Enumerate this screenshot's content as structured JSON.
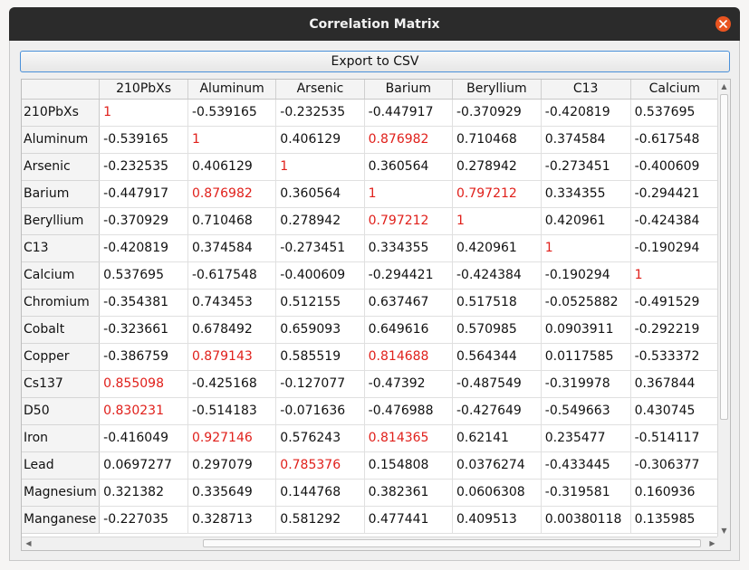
{
  "window": {
    "title": "Correlation Matrix"
  },
  "toolbar": {
    "export_label": "Export to CSV"
  },
  "highlight_color": "#e0201b",
  "icons": {
    "close": "close-icon",
    "scroll_up": "arrow-up-icon",
    "scroll_down": "arrow-down-icon",
    "scroll_left": "arrow-left-icon",
    "scroll_right": "arrow-right-icon"
  },
  "arrows": {
    "up": "▲",
    "down": "▼",
    "left": "◀",
    "right": "▶"
  },
  "table": {
    "columns": [
      "210PbXs",
      "Aluminum",
      "Arsenic",
      "Barium",
      "Beryllium",
      "C13",
      "Calcium"
    ],
    "rows": [
      {
        "label": "210PbXs",
        "cells": [
          {
            "v": "1",
            "hi": true
          },
          {
            "v": "-0.539165"
          },
          {
            "v": "-0.232535"
          },
          {
            "v": "-0.447917"
          },
          {
            "v": "-0.370929"
          },
          {
            "v": "-0.420819"
          },
          {
            "v": "0.537695"
          }
        ]
      },
      {
        "label": "Aluminum",
        "cells": [
          {
            "v": "-0.539165"
          },
          {
            "v": "1",
            "hi": true
          },
          {
            "v": "0.406129"
          },
          {
            "v": "0.876982",
            "hi": true
          },
          {
            "v": "0.710468"
          },
          {
            "v": "0.374584"
          },
          {
            "v": "-0.617548"
          }
        ]
      },
      {
        "label": "Arsenic",
        "cells": [
          {
            "v": "-0.232535"
          },
          {
            "v": "0.406129"
          },
          {
            "v": "1",
            "hi": true
          },
          {
            "v": "0.360564"
          },
          {
            "v": "0.278942"
          },
          {
            "v": "-0.273451"
          },
          {
            "v": "-0.400609"
          }
        ]
      },
      {
        "label": "Barium",
        "cells": [
          {
            "v": "-0.447917"
          },
          {
            "v": "0.876982",
            "hi": true
          },
          {
            "v": "0.360564"
          },
          {
            "v": "1",
            "hi": true
          },
          {
            "v": "0.797212",
            "hi": true
          },
          {
            "v": "0.334355"
          },
          {
            "v": "-0.294421"
          }
        ]
      },
      {
        "label": "Beryllium",
        "cells": [
          {
            "v": "-0.370929"
          },
          {
            "v": "0.710468"
          },
          {
            "v": "0.278942"
          },
          {
            "v": "0.797212",
            "hi": true
          },
          {
            "v": "1",
            "hi": true
          },
          {
            "v": "0.420961"
          },
          {
            "v": "-0.424384"
          }
        ]
      },
      {
        "label": "C13",
        "cells": [
          {
            "v": "-0.420819"
          },
          {
            "v": "0.374584"
          },
          {
            "v": "-0.273451"
          },
          {
            "v": "0.334355"
          },
          {
            "v": "0.420961"
          },
          {
            "v": "1",
            "hi": true
          },
          {
            "v": "-0.190294"
          }
        ]
      },
      {
        "label": "Calcium",
        "cells": [
          {
            "v": "0.537695"
          },
          {
            "v": "-0.617548"
          },
          {
            "v": "-0.400609"
          },
          {
            "v": "-0.294421"
          },
          {
            "v": "-0.424384"
          },
          {
            "v": "-0.190294"
          },
          {
            "v": "1",
            "hi": true
          }
        ]
      },
      {
        "label": "Chromium",
        "cells": [
          {
            "v": "-0.354381"
          },
          {
            "v": "0.743453"
          },
          {
            "v": "0.512155"
          },
          {
            "v": "0.637467"
          },
          {
            "v": "0.517518"
          },
          {
            "v": "-0.0525882"
          },
          {
            "v": "-0.491529"
          }
        ]
      },
      {
        "label": "Cobalt",
        "cells": [
          {
            "v": "-0.323661"
          },
          {
            "v": "0.678492"
          },
          {
            "v": "0.659093"
          },
          {
            "v": "0.649616"
          },
          {
            "v": "0.570985"
          },
          {
            "v": "0.0903911"
          },
          {
            "v": "-0.292219"
          }
        ]
      },
      {
        "label": "Copper",
        "cells": [
          {
            "v": "-0.386759"
          },
          {
            "v": "0.879143",
            "hi": true
          },
          {
            "v": "0.585519"
          },
          {
            "v": "0.814688",
            "hi": true
          },
          {
            "v": "0.564344"
          },
          {
            "v": "0.0117585"
          },
          {
            "v": "-0.533372"
          }
        ]
      },
      {
        "label": "Cs137",
        "cells": [
          {
            "v": "0.855098",
            "hi": true
          },
          {
            "v": "-0.425168"
          },
          {
            "v": "-0.127077"
          },
          {
            "v": "-0.47392"
          },
          {
            "v": "-0.487549"
          },
          {
            "v": "-0.319978"
          },
          {
            "v": "0.367844"
          }
        ]
      },
      {
        "label": "D50",
        "cells": [
          {
            "v": "0.830231",
            "hi": true
          },
          {
            "v": "-0.514183"
          },
          {
            "v": "-0.071636"
          },
          {
            "v": "-0.476988"
          },
          {
            "v": "-0.427649"
          },
          {
            "v": "-0.549663"
          },
          {
            "v": "0.430745"
          }
        ]
      },
      {
        "label": "Iron",
        "cells": [
          {
            "v": "-0.416049"
          },
          {
            "v": "0.927146",
            "hi": true
          },
          {
            "v": "0.576243"
          },
          {
            "v": "0.814365",
            "hi": true
          },
          {
            "v": "0.62141"
          },
          {
            "v": "0.235477"
          },
          {
            "v": "-0.514117"
          }
        ]
      },
      {
        "label": "Lead",
        "cells": [
          {
            "v": "0.0697277"
          },
          {
            "v": "0.297079"
          },
          {
            "v": "0.785376",
            "hi": true
          },
          {
            "v": "0.154808"
          },
          {
            "v": "0.0376274"
          },
          {
            "v": "-0.433445"
          },
          {
            "v": "-0.306377"
          }
        ]
      },
      {
        "label": "Magnesium",
        "cells": [
          {
            "v": "0.321382"
          },
          {
            "v": "0.335649"
          },
          {
            "v": "0.144768"
          },
          {
            "v": "0.382361"
          },
          {
            "v": "0.0606308"
          },
          {
            "v": "-0.319581"
          },
          {
            "v": "0.160936"
          }
        ]
      },
      {
        "label": "Manganese",
        "cells": [
          {
            "v": "-0.227035"
          },
          {
            "v": "0.328713"
          },
          {
            "v": "0.581292"
          },
          {
            "v": "0.477441"
          },
          {
            "v": "0.409513"
          },
          {
            "v": "0.00380118"
          },
          {
            "v": "0.135985"
          }
        ]
      }
    ]
  }
}
